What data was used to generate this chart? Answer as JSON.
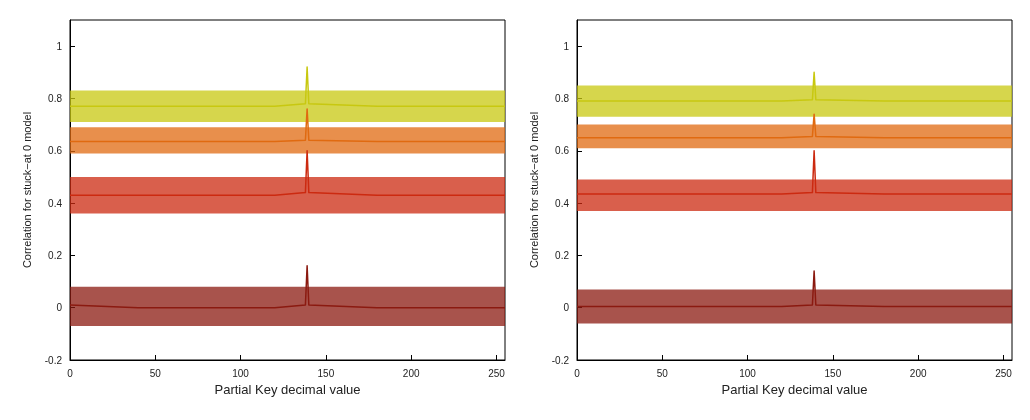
{
  "chart_data": [
    {
      "type": "line",
      "xlabel": "Partial Key decimal value",
      "ylabel": "Correlation for stuck−at 0 model",
      "xlim": [
        0,
        255
      ],
      "ylim": [
        -0.2,
        1.1
      ],
      "xticks": [
        0,
        50,
        100,
        150,
        200,
        250
      ],
      "yticks": [
        -0.2,
        0,
        0.2,
        0.4,
        0.6,
        0.8,
        1
      ],
      "grid": false,
      "marker": "none",
      "series": [
        {
          "color": "#8b1a10",
          "x": [
            0,
            40,
            80,
            120,
            138,
            139,
            140,
            180,
            220,
            255
          ],
          "values": [
            0.01,
            0,
            0,
            0,
            0.01,
            0.16,
            0.01,
            0,
            0,
            0
          ],
          "lower": [
            -0.07,
            -0.07,
            -0.07,
            -0.07,
            -0.07,
            -0.07,
            -0.07,
            -0.07,
            -0.07,
            -0.07
          ],
          "upper": [
            0.08,
            0.08,
            0.08,
            0.08,
            0.08,
            0.08,
            0.08,
            0.08,
            0.08,
            0.08
          ]
        },
        {
          "color": "#cc2a10",
          "x": [
            0,
            40,
            80,
            120,
            138,
            139,
            140,
            180,
            220,
            255
          ],
          "values": [
            0.43,
            0.43,
            0.43,
            0.43,
            0.44,
            0.6,
            0.44,
            0.43,
            0.43,
            0.43
          ],
          "lower": [
            0.36,
            0.36,
            0.36,
            0.36,
            0.36,
            0.36,
            0.36,
            0.36,
            0.36,
            0.36
          ],
          "upper": [
            0.5,
            0.5,
            0.5,
            0.5,
            0.5,
            0.5,
            0.5,
            0.5,
            0.5,
            0.5
          ]
        },
        {
          "color": "#e06a10",
          "x": [
            0,
            40,
            80,
            120,
            138,
            139,
            140,
            180,
            220,
            255
          ],
          "values": [
            0.635,
            0.635,
            0.635,
            0.635,
            0.64,
            0.76,
            0.64,
            0.635,
            0.635,
            0.635
          ],
          "lower": [
            0.59,
            0.59,
            0.59,
            0.59,
            0.59,
            0.59,
            0.59,
            0.59,
            0.59,
            0.59
          ],
          "upper": [
            0.69,
            0.69,
            0.69,
            0.69,
            0.69,
            0.69,
            0.69,
            0.69,
            0.69,
            0.69
          ]
        },
        {
          "color": "#c8c810",
          "x": [
            0,
            40,
            80,
            120,
            138,
            139,
            140,
            180,
            220,
            255
          ],
          "values": [
            0.77,
            0.77,
            0.77,
            0.77,
            0.78,
            0.92,
            0.78,
            0.77,
            0.77,
            0.77
          ],
          "lower": [
            0.71,
            0.71,
            0.71,
            0.71,
            0.71,
            0.71,
            0.71,
            0.71,
            0.71,
            0.71
          ],
          "upper": [
            0.83,
            0.83,
            0.83,
            0.83,
            0.83,
            0.83,
            0.83,
            0.83,
            0.83,
            0.83
          ]
        }
      ]
    },
    {
      "type": "line",
      "xlabel": "Partial Key decimal value",
      "ylabel": "Correlation for stuck−at 0 model",
      "xlim": [
        0,
        255
      ],
      "ylim": [
        -0.2,
        1.1
      ],
      "xticks": [
        0,
        50,
        100,
        150,
        200,
        250
      ],
      "yticks": [
        -0.2,
        0,
        0.2,
        0.4,
        0.6,
        0.8,
        1
      ],
      "grid": false,
      "marker": "none",
      "series": [
        {
          "color": "#8b1a10",
          "x": [
            0,
            40,
            80,
            120,
            138,
            139,
            140,
            180,
            220,
            255
          ],
          "values": [
            0.005,
            0.005,
            0.005,
            0.005,
            0.01,
            0.14,
            0.01,
            0.005,
            0.005,
            0.005
          ],
          "lower": [
            -0.06,
            -0.06,
            -0.06,
            -0.06,
            -0.06,
            -0.06,
            -0.06,
            -0.06,
            -0.06,
            -0.06
          ],
          "upper": [
            0.07,
            0.07,
            0.07,
            0.07,
            0.07,
            0.07,
            0.07,
            0.07,
            0.07,
            0.07
          ]
        },
        {
          "color": "#cc2a10",
          "x": [
            0,
            40,
            80,
            120,
            138,
            139,
            140,
            180,
            220,
            255
          ],
          "values": [
            0.435,
            0.435,
            0.435,
            0.435,
            0.44,
            0.6,
            0.44,
            0.435,
            0.435,
            0.435
          ],
          "lower": [
            0.37,
            0.37,
            0.37,
            0.37,
            0.37,
            0.37,
            0.37,
            0.37,
            0.37,
            0.37
          ],
          "upper": [
            0.49,
            0.49,
            0.49,
            0.49,
            0.49,
            0.49,
            0.49,
            0.49,
            0.49,
            0.49
          ]
        },
        {
          "color": "#e06a10",
          "x": [
            0,
            40,
            80,
            120,
            138,
            139,
            140,
            180,
            220,
            255
          ],
          "values": [
            0.65,
            0.65,
            0.65,
            0.65,
            0.655,
            0.74,
            0.655,
            0.65,
            0.65,
            0.65
          ],
          "lower": [
            0.61,
            0.61,
            0.61,
            0.61,
            0.61,
            0.61,
            0.61,
            0.61,
            0.61,
            0.61
          ],
          "upper": [
            0.7,
            0.7,
            0.7,
            0.7,
            0.7,
            0.7,
            0.7,
            0.7,
            0.7,
            0.7
          ]
        },
        {
          "color": "#c8c810",
          "x": [
            0,
            40,
            80,
            120,
            138,
            139,
            140,
            180,
            220,
            255
          ],
          "values": [
            0.79,
            0.79,
            0.79,
            0.79,
            0.795,
            0.9,
            0.795,
            0.79,
            0.79,
            0.79
          ],
          "lower": [
            0.73,
            0.73,
            0.73,
            0.73,
            0.73,
            0.73,
            0.73,
            0.73,
            0.73,
            0.73
          ],
          "upper": [
            0.85,
            0.85,
            0.85,
            0.85,
            0.85,
            0.85,
            0.85,
            0.85,
            0.85,
            0.85
          ]
        }
      ]
    }
  ]
}
